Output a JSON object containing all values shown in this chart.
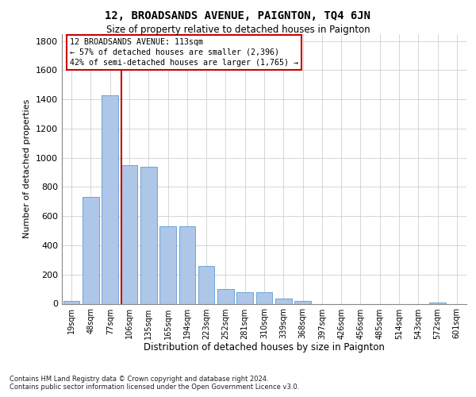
{
  "title": "12, BROADSANDS AVENUE, PAIGNTON, TQ4 6JN",
  "subtitle": "Size of property relative to detached houses in Paignton",
  "xlabel": "Distribution of detached houses by size in Paignton",
  "ylabel": "Number of detached properties",
  "bar_color": "#aec6e8",
  "bar_edgecolor": "#5b9bd5",
  "vline_x_index": 3,
  "vline_color": "#cc0000",
  "annotation_text": "12 BROADSANDS AVENUE: 113sqm\n← 57% of detached houses are smaller (2,396)\n42% of semi-detached houses are larger (1,765) →",
  "annotation_box_color": "#cc0000",
  "categories": [
    "19sqm",
    "48sqm",
    "77sqm",
    "106sqm",
    "135sqm",
    "165sqm",
    "194sqm",
    "223sqm",
    "252sqm",
    "281sqm",
    "310sqm",
    "339sqm",
    "368sqm",
    "397sqm",
    "426sqm",
    "456sqm",
    "485sqm",
    "514sqm",
    "543sqm",
    "572sqm",
    "601sqm"
  ],
  "values": [
    20,
    730,
    1430,
    950,
    940,
    530,
    530,
    260,
    100,
    80,
    80,
    35,
    20,
    0,
    0,
    0,
    0,
    0,
    0,
    10,
    0
  ],
  "ylim": [
    0,
    1850
  ],
  "yticks": [
    0,
    200,
    400,
    600,
    800,
    1000,
    1200,
    1400,
    1600,
    1800
  ],
  "background_color": "#ffffff",
  "grid_color": "#d0d0d0",
  "footer": "Contains HM Land Registry data © Crown copyright and database right 2024.\nContains public sector information licensed under the Open Government Licence v3.0."
}
